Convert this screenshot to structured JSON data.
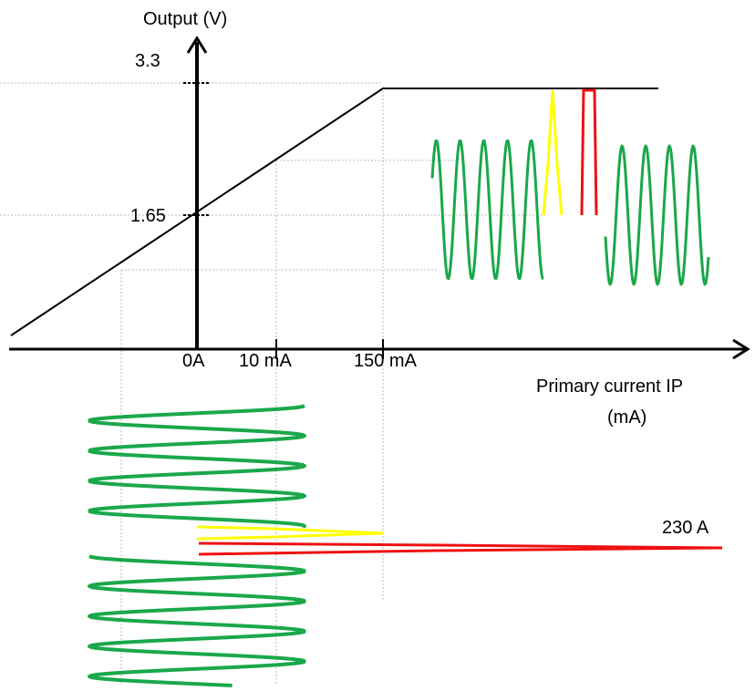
{
  "axes": {
    "y_title": "Output (V)",
    "y_tick_top": "3.3",
    "y_tick_mid": "1.65",
    "x_tick_0": "0A",
    "x_tick_10": "10 mA",
    "x_tick_150": "150 mA",
    "x_title_line1": "Primary current IP",
    "x_title_line2": "(mA)"
  },
  "annotations": {
    "peak_current": "230 A"
  },
  "colors": {
    "axis": "#000000",
    "transfer_curve": "#000000",
    "gridline": "#bbbbbb",
    "normal_signal": "#1aa84a",
    "spike_small": "#ffff00",
    "spike_large": "#ee1111"
  }
}
